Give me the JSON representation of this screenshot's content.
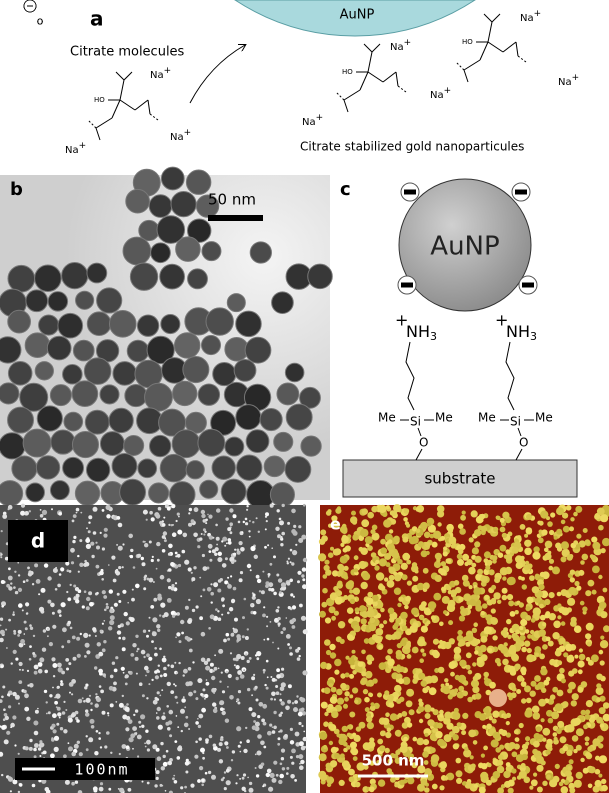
{
  "panel_labels": {
    "a": "a",
    "b": "b",
    "c": "c",
    "d": "d",
    "e": "e"
  },
  "panel_a": {
    "nanoparticle": "AuNP",
    "citrate_label": "Citrate molecules",
    "caption": "Citrate stabilized gold nanoparticules",
    "counterion": {
      "symbol": "Na",
      "charge": "+"
    },
    "hydroxyl": "HO",
    "oxygen": "O"
  },
  "panel_b": {
    "scale_bar": "50 nm"
  },
  "panel_c": {
    "nanoparticle": "AuNP",
    "amine": {
      "charge": "+",
      "symbol": "NH",
      "subscript": "3"
    },
    "methyl": "Me",
    "silicon": "Si",
    "oxygen": "O",
    "substrate": "substrate"
  },
  "panel_d": {
    "scale_bar": "100nm"
  },
  "panel_e": {
    "scale_bar": "500 nm"
  }
}
